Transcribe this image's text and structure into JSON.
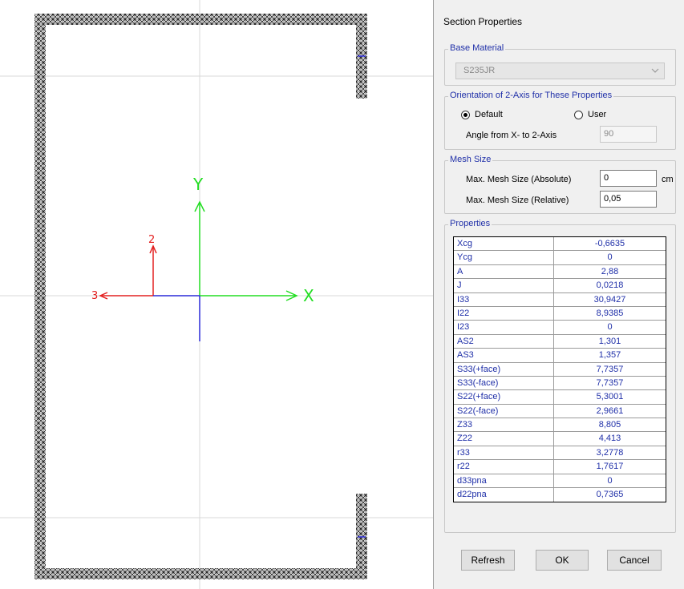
{
  "canvas": {
    "axis_y_label": "Y",
    "axis_x_label": "X",
    "local_2_label": "2",
    "local_3_label": "3"
  },
  "dialog": {
    "title": "Section Properties",
    "base_material": {
      "group_label": "Base Material",
      "value": "S235JR"
    },
    "orientation": {
      "group_label": "Orientation of 2-Axis for These Properties",
      "default_label": "Default",
      "user_label": "User",
      "selected": "Default",
      "angle_label": "Angle from X- to 2-Axis",
      "angle_value": "90"
    },
    "mesh": {
      "group_label": "Mesh Size",
      "abs_label": "Max. Mesh Size (Absolute)",
      "abs_value": "0",
      "abs_unit": "cm",
      "rel_label": "Max. Mesh Size (Relative)",
      "rel_value": "0,05"
    },
    "properties": {
      "group_label": "Properties",
      "rows": [
        {
          "name": "Xcg",
          "value": "-0,6635"
        },
        {
          "name": "Ycg",
          "value": "0"
        },
        {
          "name": "A",
          "value": "2,88"
        },
        {
          "name": "J",
          "value": "0,0218"
        },
        {
          "name": "I33",
          "value": "30,9427"
        },
        {
          "name": "I22",
          "value": "8,9385"
        },
        {
          "name": "I23",
          "value": "0"
        },
        {
          "name": "AS2",
          "value": "1,301"
        },
        {
          "name": "AS3",
          "value": "1,357"
        },
        {
          "name": "S33(+face)",
          "value": "7,7357"
        },
        {
          "name": "S33(-face)",
          "value": "7,7357"
        },
        {
          "name": "S22(+face)",
          "value": "5,3001"
        },
        {
          "name": "S22(-face)",
          "value": "2,9661"
        },
        {
          "name": "Z33",
          "value": "8,805"
        },
        {
          "name": "Z22",
          "value": "4,413"
        },
        {
          "name": "r33",
          "value": "3,2778"
        },
        {
          "name": "r22",
          "value": "1,7617"
        },
        {
          "name": "d33pna",
          "value": "0"
        },
        {
          "name": "d22pna",
          "value": "0,7365"
        }
      ]
    },
    "buttons": {
      "refresh": "Refresh",
      "ok": "OK",
      "cancel": "Cancel"
    }
  }
}
